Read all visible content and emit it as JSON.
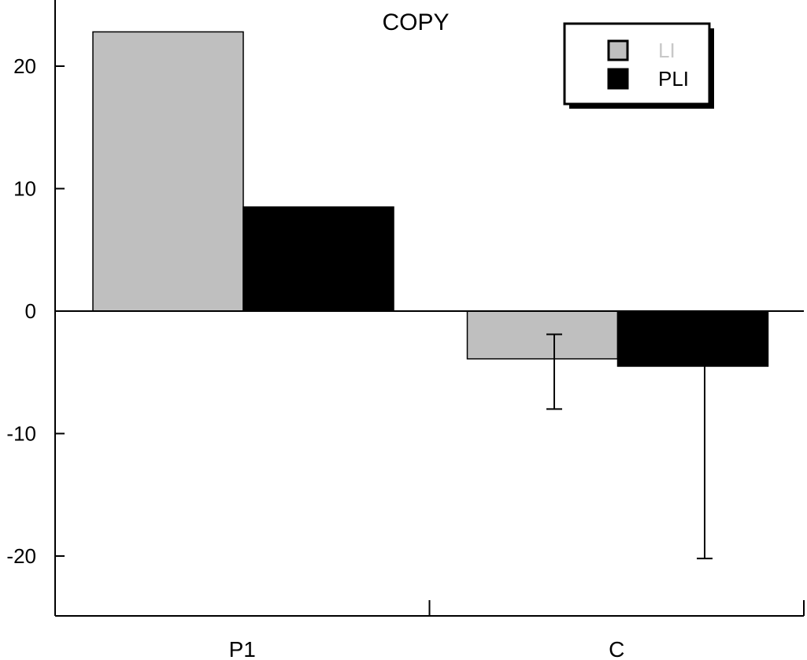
{
  "chart_data": {
    "type": "bar",
    "title": "COPY",
    "xlabel": "",
    "ylabel": "",
    "categories": [
      "P1",
      "C"
    ],
    "series": [
      {
        "name": "LI",
        "color": "#bfbfbf",
        "values": [
          22.8,
          -3.9
        ],
        "error_low": [
          null,
          -8.0
        ],
        "error_high": [
          null,
          -1.9
        ]
      },
      {
        "name": "PLI",
        "color": "#000000",
        "values": [
          8.5,
          -4.5
        ],
        "error_low": [
          null,
          -20.2
        ],
        "error_high": [
          null,
          -4.5
        ]
      }
    ],
    "ylim": [
      -25,
      25
    ],
    "yticks": [
      20,
      10,
      0,
      -10,
      -20
    ],
    "ytick_labels": [
      "20",
      "10",
      "0",
      "-10",
      "-20"
    ],
    "grid": false,
    "legend_position": "top-right",
    "legend_text_colors": [
      "#c8c8c8",
      "#000000"
    ]
  }
}
